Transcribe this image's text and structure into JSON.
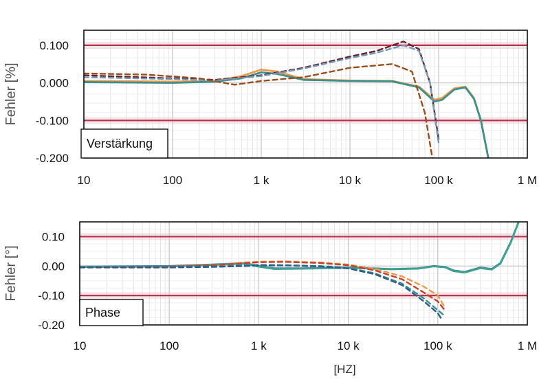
{
  "chart_data": [
    {
      "type": "line",
      "xscale": "log",
      "xlim": [
        10,
        1000000
      ],
      "ylim": [
        -0.2,
        0.14
      ],
      "x_ticks": [
        10,
        100,
        1000,
        10000,
        100000,
        1000000
      ],
      "x_tick_labels": [
        "10",
        "100",
        "1 k",
        "10 k",
        "100 k",
        "1 M"
      ],
      "y_ticks": [
        0.1,
        0.0,
        -0.1,
        -0.2
      ],
      "y_tick_labels": [
        "0.100",
        "0.000",
        "-0.100",
        "-0.200"
      ],
      "ylabel": "Fehler [%]",
      "xlabel": "",
      "title": "",
      "annotation": "Verstärkung",
      "grid": true,
      "limit_lines": [
        0.1,
        -0.1
      ],
      "series": [
        {
          "color": "#ec9a4b",
          "dash": false,
          "x": [
            10,
            100,
            300,
            600,
            1000,
            1500,
            3000,
            10000,
            30000,
            60000,
            90000,
            110000,
            150000,
            200000,
            250000,
            300000,
            400000
          ],
          "y": [
            0.005,
            0.003,
            0.005,
            0.018,
            0.035,
            0.03,
            0.01,
            0.006,
            0.005,
            -0.01,
            -0.045,
            -0.04,
            -0.015,
            -0.01,
            -0.04,
            -0.1,
            -0.25
          ]
        },
        {
          "color": "#3f8f8a",
          "dash": false,
          "x": [
            10,
            100,
            300,
            600,
            1000,
            1500,
            3000,
            10000,
            30000,
            60000,
            90000,
            110000,
            150000,
            200000,
            250000,
            300000,
            400000
          ],
          "y": [
            0.002,
            0.0,
            0.003,
            0.012,
            0.028,
            0.024,
            0.008,
            0.005,
            0.004,
            -0.012,
            -0.05,
            -0.045,
            -0.018,
            -0.012,
            -0.042,
            -0.1,
            -0.25
          ]
        },
        {
          "color": "#6e1f2e",
          "dash": true,
          "x": [
            10,
            100,
            300,
            1000,
            3000,
            10000,
            20000,
            40000,
            60000,
            80000,
            100000
          ],
          "y": [
            0.02,
            0.012,
            0.008,
            0.02,
            0.04,
            0.07,
            0.085,
            0.11,
            0.09,
            0.0,
            -0.15
          ]
        },
        {
          "color": "#6f9ab8",
          "dash": true,
          "x": [
            10,
            100,
            300,
            1000,
            3000,
            10000,
            20000,
            40000,
            60000,
            80000,
            100000
          ],
          "y": [
            0.015,
            0.01,
            0.006,
            0.018,
            0.038,
            0.066,
            0.08,
            0.1,
            0.085,
            0.0,
            -0.16
          ]
        },
        {
          "color": "#9a4d1b",
          "dash": true,
          "x": [
            10,
            50,
            200,
            500,
            1000,
            3000,
            10000,
            30000,
            50000,
            70000,
            85000
          ],
          "y": [
            0.025,
            0.022,
            0.012,
            -0.005,
            0.005,
            0.015,
            0.04,
            0.05,
            0.03,
            -0.08,
            -0.2
          ]
        }
      ]
    },
    {
      "type": "line",
      "xscale": "log",
      "xlim": [
        10,
        1000000
      ],
      "ylim": [
        -0.2,
        0.15
      ],
      "x_ticks": [
        10,
        100,
        1000,
        10000,
        100000,
        1000000
      ],
      "x_tick_labels": [
        "10",
        "100",
        "1 k",
        "10 k",
        "100 k",
        "1 M"
      ],
      "y_ticks": [
        0.1,
        0.0,
        -0.1,
        -0.2
      ],
      "y_tick_labels": [
        "0.10",
        "0.00",
        "-0.10",
        "-0.20"
      ],
      "ylabel": "Fehler [°]",
      "xlabel": "[HZ]",
      "title": "",
      "annotation": "Phase",
      "grid": true,
      "limit_lines": [
        0.1,
        -0.1
      ],
      "series": [
        {
          "color": "#4a7fa8",
          "dash": false,
          "x": [
            10,
            100,
            300,
            700,
            1000,
            1500,
            3000,
            10000,
            30000,
            60000,
            90000,
            120000,
            150000,
            200000,
            300000,
            400000,
            500000,
            650000,
            800000
          ],
          "y": [
            -0.002,
            0.0,
            0.005,
            0.01,
            0.0,
            -0.008,
            -0.008,
            -0.005,
            -0.01,
            -0.008,
            0.0,
            -0.003,
            -0.015,
            -0.02,
            -0.005,
            -0.01,
            0.01,
            0.08,
            0.15
          ]
        },
        {
          "color": "#3fa28f",
          "dash": false,
          "x": [
            10,
            100,
            300,
            700,
            1000,
            1500,
            3000,
            10000,
            30000,
            60000,
            90000,
            120000,
            150000,
            200000,
            300000,
            400000,
            500000,
            650000,
            800000
          ],
          "y": [
            -0.003,
            -0.002,
            0.004,
            0.008,
            -0.002,
            -0.01,
            -0.009,
            -0.006,
            -0.011,
            -0.009,
            -0.001,
            -0.004,
            -0.017,
            -0.022,
            -0.007,
            -0.012,
            0.008,
            0.078,
            0.15
          ]
        },
        {
          "color": "#ec9a4b",
          "dash": true,
          "x": [
            10,
            100,
            300,
            700,
            1000,
            2000,
            5000,
            10000,
            20000,
            40000,
            70000,
            100000,
            120000
          ],
          "y": [
            -0.003,
            -0.002,
            0.002,
            0.012,
            0.015,
            0.016,
            0.012,
            0.005,
            -0.01,
            -0.035,
            -0.07,
            -0.1,
            -0.14
          ]
        },
        {
          "color": "#c9402a",
          "dash": true,
          "x": [
            10,
            100,
            300,
            700,
            1000,
            2000,
            5000,
            10000,
            20000,
            40000,
            70000,
            100000,
            120000
          ],
          "y": [
            -0.003,
            -0.002,
            0.002,
            0.01,
            0.013,
            0.014,
            0.01,
            0.003,
            -0.015,
            -0.045,
            -0.09,
            -0.12,
            -0.15
          ]
        },
        {
          "color": "#3a8f86",
          "dash": true,
          "x": [
            10,
            100,
            300,
            700,
            1000,
            2000,
            5000,
            10000,
            20000,
            40000,
            70000,
            100000,
            115000
          ],
          "y": [
            -0.004,
            -0.004,
            -0.002,
            0.002,
            0.004,
            0.003,
            0.0,
            -0.006,
            -0.025,
            -0.06,
            -0.11,
            -0.15,
            -0.165
          ]
        },
        {
          "color": "#2a5c8f",
          "dash": true,
          "x": [
            10,
            100,
            300,
            700,
            1000,
            2000,
            5000,
            10000,
            20000,
            40000,
            70000,
            100000,
            110000
          ],
          "y": [
            -0.005,
            -0.005,
            -0.003,
            0.0,
            0.002,
            0.002,
            -0.002,
            -0.008,
            -0.028,
            -0.065,
            -0.12,
            -0.16,
            -0.18
          ]
        }
      ]
    }
  ]
}
